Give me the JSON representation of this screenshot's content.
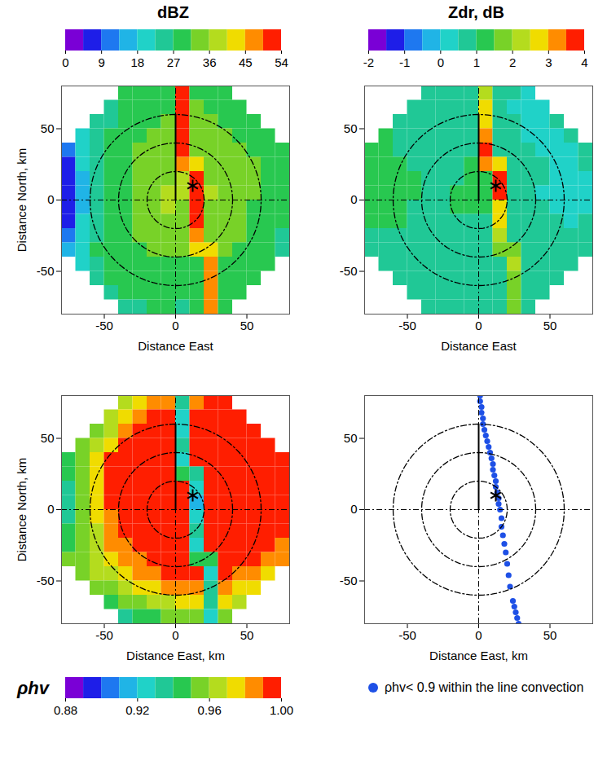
{
  "chart_data": [
    {
      "type": "heatmap",
      "title": "dBZ",
      "xlabel": "Distance East",
      "ylabel": "Distance North, km",
      "xlim": [
        -80,
        80
      ],
      "ylim": [
        -80,
        80
      ],
      "xticks": [
        -50,
        0,
        50
      ],
      "yticks": [
        -50,
        0,
        50
      ],
      "x_centers": [
        -75,
        -65,
        -55,
        -45,
        -35,
        -25,
        -15,
        -5,
        5,
        15,
        25,
        35,
        45,
        55,
        65,
        75
      ],
      "y_centers": [
        75,
        65,
        55,
        45,
        35,
        25,
        15,
        5,
        -5,
        -15,
        -25,
        -35,
        -45,
        -55,
        -65,
        -75
      ],
      "cell_size": 10,
      "cells": [
        [
          null,
          null,
          null,
          null,
          27,
          28,
          29,
          30,
          52,
          31,
          30,
          29,
          null,
          null,
          null,
          null
        ],
        [
          null,
          null,
          null,
          26,
          27,
          29,
          30,
          31,
          53,
          32,
          31,
          30,
          29,
          null,
          null,
          null
        ],
        [
          null,
          null,
          24,
          26,
          28,
          30,
          31,
          32,
          54,
          33,
          32,
          31,
          30,
          29,
          null,
          null
        ],
        [
          null,
          20,
          24,
          27,
          29,
          31,
          32,
          32,
          53,
          34,
          33,
          32,
          31,
          30,
          29,
          null
        ],
        [
          12,
          20,
          25,
          28,
          30,
          32,
          33,
          33,
          52,
          35,
          34,
          33,
          32,
          31,
          30,
          28
        ],
        [
          8,
          18,
          25,
          29,
          31,
          33,
          34,
          35,
          48,
          44,
          35,
          34,
          33,
          32,
          31,
          29
        ],
        [
          6,
          17,
          24,
          28,
          31,
          33,
          34,
          35,
          36,
          53,
          35,
          34,
          33,
          32,
          31,
          29
        ],
        [
          5,
          16,
          24,
          29,
          31,
          33,
          35,
          36,
          36,
          54,
          36,
          35,
          33,
          32,
          30,
          28
        ],
        [
          6,
          17,
          25,
          29,
          31,
          33,
          35,
          36,
          35,
          52,
          35,
          34,
          33,
          31,
          30,
          27
        ],
        [
          8,
          18,
          26,
          29,
          31,
          33,
          34,
          35,
          34,
          50,
          34,
          33,
          32,
          31,
          29,
          27
        ],
        [
          10,
          19,
          26,
          29,
          31,
          32,
          33,
          34,
          33,
          49,
          34,
          33,
          32,
          30,
          29,
          26
        ],
        [
          14,
          22,
          27,
          29,
          30,
          31,
          32,
          33,
          32,
          44,
          42,
          32,
          31,
          30,
          28,
          26
        ],
        [
          null,
          20,
          25,
          28,
          29,
          30,
          31,
          31,
          31,
          30,
          48,
          31,
          30,
          29,
          27,
          null
        ],
        [
          null,
          null,
          24,
          27,
          28,
          29,
          30,
          30,
          30,
          29,
          47,
          30,
          29,
          28,
          null,
          null
        ],
        [
          null,
          null,
          null,
          26,
          27,
          28,
          29,
          29,
          29,
          28,
          46,
          29,
          28,
          null,
          null,
          null
        ],
        [
          null,
          null,
          null,
          null,
          25,
          26,
          27,
          27,
          26,
          27,
          45,
          27,
          null,
          null,
          null,
          null
        ]
      ],
      "colorbar": {
        "range": [
          0,
          54
        ],
        "ticks": [
          0,
          9,
          18,
          27,
          36,
          45,
          54
        ]
      }
    },
    {
      "type": "heatmap",
      "title": "Zdr, dB",
      "xlabel": "Distance East",
      "xlim": [
        -80,
        80
      ],
      "ylim": [
        -80,
        80
      ],
      "xticks": [
        -50,
        0,
        50
      ],
      "yticks": [
        -50,
        0,
        50
      ],
      "x_centers": [
        -75,
        -65,
        -55,
        -45,
        -35,
        -25,
        -15,
        -5,
        5,
        15,
        25,
        35,
        45,
        55,
        65,
        75
      ],
      "y_centers": [
        75,
        65,
        55,
        45,
        35,
        25,
        15,
        5,
        -5,
        -15,
        -25,
        -35,
        -45,
        -55,
        -65,
        -75
      ],
      "cell_size": 10,
      "cells": [
        [
          null,
          null,
          null,
          null,
          0.8,
          0.8,
          0.7,
          0.8,
          2.2,
          0.7,
          0.5,
          0.4,
          null,
          null,
          null,
          null
        ],
        [
          null,
          null,
          null,
          0.9,
          0.8,
          0.8,
          0.7,
          0.8,
          2.6,
          0.6,
          0.4,
          0.3,
          0.4,
          null,
          null,
          null
        ],
        [
          null,
          null,
          0.9,
          0.9,
          0.8,
          0.8,
          0.7,
          0.8,
          2.9,
          0.6,
          0.5,
          0.3,
          0.4,
          0.5,
          null,
          null
        ],
        [
          null,
          1.0,
          0.9,
          0.9,
          0.8,
          0.8,
          0.7,
          0.8,
          3.4,
          0.7,
          0.5,
          0.4,
          0.3,
          0.4,
          0.6,
          null
        ],
        [
          1.1,
          1.0,
          0.9,
          0.9,
          0.8,
          0.8,
          0.8,
          0.9,
          3.6,
          0.8,
          0.6,
          0.5,
          0.4,
          0.3,
          0.4,
          0.6
        ],
        [
          1.1,
          1.0,
          1.0,
          0.9,
          0.9,
          0.8,
          0.9,
          1.0,
          3.2,
          2.8,
          0.7,
          0.6,
          0.5,
          0.3,
          0.2,
          0.5
        ],
        [
          1.2,
          1.1,
          1.0,
          1.0,
          0.9,
          0.9,
          0.9,
          1.0,
          1.1,
          3.7,
          0.8,
          0.7,
          0.5,
          0.2,
          0.1,
          0.4
        ],
        [
          1.2,
          1.1,
          1.0,
          1.0,
          0.9,
          0.9,
          1.0,
          1.0,
          1.1,
          3.5,
          0.8,
          0.7,
          0.4,
          0.1,
          0.0,
          0.3
        ],
        [
          1.1,
          1.1,
          1.0,
          0.9,
          0.9,
          0.9,
          1.0,
          1.0,
          1.0,
          2.9,
          0.8,
          0.7,
          0.5,
          0.3,
          0.2,
          0.4
        ],
        [
          1.0,
          1.0,
          1.0,
          0.9,
          0.9,
          0.9,
          0.9,
          0.9,
          0.9,
          2.5,
          0.8,
          0.7,
          0.6,
          0.5,
          0.4,
          0.5
        ],
        [
          0.9,
          0.9,
          0.9,
          0.9,
          0.8,
          0.8,
          0.8,
          0.8,
          0.8,
          2.2,
          0.7,
          0.7,
          0.6,
          0.6,
          0.5,
          0.5
        ],
        [
          0.8,
          0.8,
          0.8,
          0.8,
          0.8,
          0.7,
          0.7,
          0.7,
          0.7,
          1.8,
          1.7,
          0.7,
          0.6,
          0.6,
          0.5,
          0.5
        ],
        [
          null,
          0.8,
          0.8,
          0.7,
          0.7,
          0.7,
          0.7,
          0.6,
          0.6,
          0.6,
          2.0,
          0.6,
          0.6,
          0.5,
          0.5,
          null
        ],
        [
          null,
          null,
          0.8,
          0.7,
          0.7,
          0.6,
          0.6,
          0.6,
          0.6,
          0.6,
          1.8,
          0.6,
          0.5,
          0.5,
          null,
          null
        ],
        [
          null,
          null,
          null,
          0.7,
          0.7,
          0.6,
          0.6,
          0.6,
          0.6,
          0.6,
          1.7,
          0.5,
          0.5,
          null,
          null,
          null
        ],
        [
          null,
          null,
          null,
          null,
          0.7,
          0.6,
          0.6,
          0.6,
          0.5,
          0.6,
          1.6,
          0.5,
          null,
          null,
          null,
          null
        ]
      ],
      "colorbar": {
        "range": [
          -2,
          4
        ],
        "ticks": [
          -2,
          -1,
          0,
          1,
          2,
          3,
          4
        ]
      }
    },
    {
      "type": "heatmap",
      "xlabel": "Distance East, km",
      "ylabel": "Distance North, km",
      "xlim": [
        -80,
        80
      ],
      "ylim": [
        -80,
        80
      ],
      "xticks": [
        -50,
        0,
        50
      ],
      "yticks": [
        -50,
        0,
        50
      ],
      "x_centers": [
        -75,
        -65,
        -55,
        -45,
        -35,
        -25,
        -15,
        -5,
        5,
        15,
        25,
        35,
        45,
        55,
        65,
        75
      ],
      "y_centers": [
        75,
        65,
        55,
        45,
        35,
        25,
        15,
        5,
        -5,
        -15,
        -25,
        -35,
        -45,
        -55,
        -65,
        -75
      ],
      "cell_size": 10,
      "cells": [
        [
          null,
          null,
          null,
          null,
          0.96,
          0.97,
          0.98,
          0.98,
          0.93,
          0.98,
          0.99,
          0.99,
          null,
          null,
          null,
          null
        ],
        [
          null,
          null,
          null,
          0.96,
          0.97,
          0.98,
          0.99,
          0.99,
          0.92,
          0.99,
          0.99,
          0.99,
          0.99,
          null,
          null,
          null
        ],
        [
          null,
          null,
          0.95,
          0.96,
          0.98,
          0.99,
          0.99,
          0.99,
          0.92,
          0.99,
          0.99,
          0.99,
          0.99,
          0.99,
          null,
          null
        ],
        [
          null,
          0.95,
          0.96,
          0.97,
          0.99,
          0.99,
          0.99,
          0.99,
          0.93,
          0.99,
          0.99,
          0.99,
          0.99,
          0.99,
          0.99,
          null
        ],
        [
          0.94,
          0.95,
          0.97,
          0.99,
          0.99,
          0.99,
          0.99,
          0.99,
          0.92,
          0.99,
          0.99,
          0.99,
          0.99,
          0.99,
          0.99,
          0.99
        ],
        [
          0.94,
          0.95,
          0.97,
          0.99,
          0.99,
          0.99,
          0.99,
          0.99,
          0.94,
          0.93,
          0.99,
          0.99,
          0.99,
          0.99,
          0.99,
          0.99
        ],
        [
          0.93,
          0.95,
          0.97,
          0.99,
          0.99,
          0.99,
          0.99,
          0.99,
          0.99,
          0.92,
          0.99,
          0.99,
          0.99,
          0.99,
          0.99,
          0.99
        ],
        [
          0.93,
          0.95,
          0.97,
          0.99,
          0.99,
          0.99,
          0.99,
          0.99,
          0.99,
          0.91,
          0.99,
          0.99,
          0.99,
          0.99,
          0.99,
          0.99
        ],
        [
          0.93,
          0.95,
          0.97,
          0.98,
          0.99,
          0.99,
          0.99,
          0.99,
          0.99,
          0.92,
          0.99,
          0.99,
          0.99,
          0.99,
          0.99,
          0.99
        ],
        [
          0.94,
          0.95,
          0.96,
          0.98,
          0.99,
          0.99,
          0.99,
          0.99,
          0.99,
          0.93,
          0.99,
          0.99,
          0.99,
          0.99,
          0.99,
          0.99
        ],
        [
          0.94,
          0.95,
          0.96,
          0.98,
          0.98,
          0.99,
          0.99,
          0.99,
          0.99,
          0.92,
          0.99,
          0.99,
          0.99,
          0.99,
          0.99,
          0.98
        ],
        [
          0.95,
          0.95,
          0.96,
          0.97,
          0.98,
          0.98,
          0.99,
          0.99,
          0.99,
          0.94,
          0.94,
          0.99,
          0.99,
          0.99,
          0.98,
          0.98
        ],
        [
          null,
          0.95,
          0.96,
          0.96,
          0.97,
          0.98,
          0.98,
          0.99,
          0.99,
          0.99,
          0.92,
          0.99,
          0.98,
          0.98,
          0.97,
          null
        ],
        [
          null,
          null,
          0.95,
          0.95,
          0.96,
          0.97,
          0.97,
          0.98,
          0.98,
          0.98,
          0.93,
          0.98,
          0.97,
          0.97,
          null,
          null
        ],
        [
          null,
          null,
          null,
          0.94,
          0.95,
          0.95,
          0.96,
          0.96,
          0.97,
          0.97,
          0.93,
          0.97,
          0.96,
          null,
          null,
          null
        ],
        [
          null,
          null,
          null,
          null,
          0.93,
          0.94,
          0.94,
          0.95,
          0.95,
          0.95,
          0.92,
          0.95,
          null,
          null,
          null,
          null
        ]
      ],
      "colorbar": {
        "label": "ρhv",
        "range": [
          0.88,
          1
        ],
        "ticks": [
          0.88,
          0.92,
          0.96,
          {
            "value": 1,
            "label": "1.00"
          }
        ]
      }
    },
    {
      "type": "scatter",
      "xlabel": "Distance East, km",
      "xlim": [
        -80,
        80
      ],
      "ylim": [
        -80,
        80
      ],
      "xticks": [
        -50,
        0,
        50
      ],
      "yticks": [
        -50,
        0,
        50
      ],
      "legend": "bottom",
      "series": [
        {
          "name": "ρhv< 0.9 within the line convection",
          "color": "#1e50e6",
          "x": [
            1,
            1,
            2,
            2,
            3,
            3,
            4,
            5,
            6,
            7,
            8,
            9,
            10,
            10,
            11,
            12,
            12,
            13,
            14,
            14,
            15,
            16,
            16,
            17,
            18,
            19,
            20,
            21,
            22,
            24,
            25,
            26,
            27,
            28
          ],
          "y": [
            80,
            76,
            72,
            68,
            64,
            60,
            56,
            52,
            48,
            44,
            40,
            36,
            32,
            28,
            24,
            20,
            16,
            12,
            8,
            4,
            0,
            -6,
            -12,
            -18,
            -24,
            -30,
            -38,
            -46,
            -54,
            -64,
            -68,
            -72,
            -76,
            -80
          ]
        }
      ]
    }
  ],
  "overlays": {
    "radar_site": [
      0,
      0
    ],
    "range_rings": [
      20,
      40,
      60
    ],
    "solid_line": {
      "x": [
        0,
        0
      ],
      "y": [
        0,
        60
      ]
    },
    "marker": [
      12,
      10
    ]
  }
}
